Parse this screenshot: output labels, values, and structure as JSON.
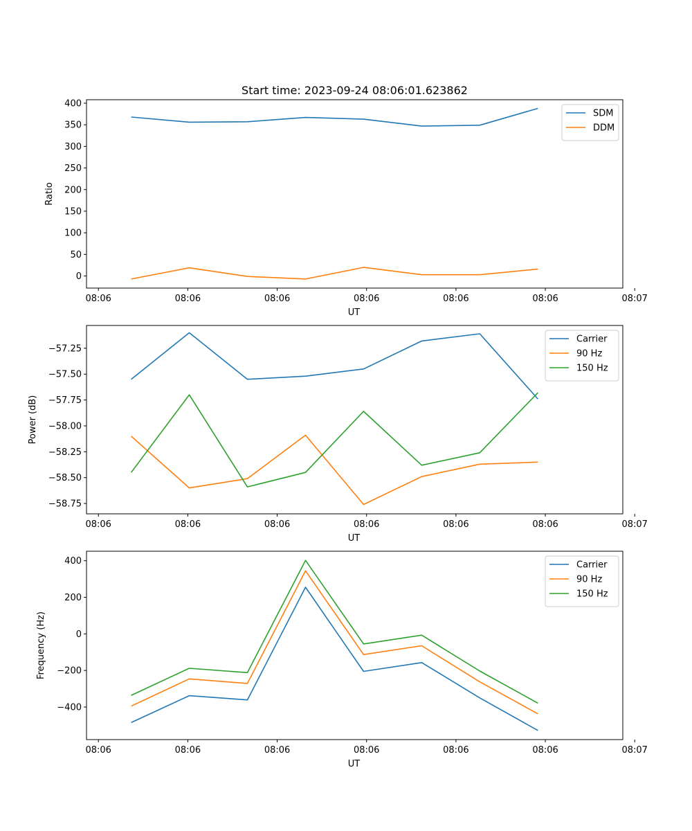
{
  "chart_data": [
    {
      "type": "line",
      "title": "Start time: 2023-09-24 08:06:01.623862",
      "xlabel": "UT",
      "ylabel": "Ratio",
      "x": [
        1.5,
        3.45,
        5.4,
        7.35,
        9.3,
        11.25,
        13.2,
        15.15
      ],
      "xlim": [
        0,
        18
      ],
      "xticks": [
        0.4,
        3.4,
        6.4,
        9.4,
        12.4,
        15.4,
        18.4
      ],
      "xtick_labels": [
        "08:06",
        "08:06",
        "08:06",
        "08:06",
        "08:06",
        "08:06",
        "08:07"
      ],
      "ylim": [
        -28,
        408
      ],
      "yticks": [
        0,
        50,
        100,
        150,
        200,
        250,
        300,
        350,
        400
      ],
      "ytick_labels": [
        "0",
        "50",
        "100",
        "150",
        "200",
        "250",
        "300",
        "350",
        "400"
      ],
      "legend_position": "top-right",
      "series": [
        {
          "name": "SDM",
          "color": "#1f77b4",
          "values": [
            368,
            356,
            357,
            367,
            363,
            347,
            349,
            388
          ]
        },
        {
          "name": "DDM",
          "color": "#ff7f0e",
          "values": [
            -7,
            19,
            -1,
            -7,
            20,
            3,
            3,
            16
          ]
        }
      ]
    },
    {
      "type": "line",
      "title": "",
      "xlabel": "UT",
      "ylabel": "Power (dB)",
      "x": [
        1.5,
        3.45,
        5.4,
        7.35,
        9.3,
        11.25,
        13.2,
        15.15
      ],
      "xlim": [
        0,
        18
      ],
      "xticks": [
        0.4,
        3.4,
        6.4,
        9.4,
        12.4,
        15.4,
        18.4
      ],
      "xtick_labels": [
        "08:06",
        "08:06",
        "08:06",
        "08:06",
        "08:06",
        "08:06",
        "08:07"
      ],
      "ylim": [
        -58.85,
        -57.03
      ],
      "yticks": [
        -58.75,
        -58.5,
        -58.25,
        -58.0,
        -57.75,
        -57.5,
        -57.25
      ],
      "ytick_labels": [
        "−58.75",
        "−58.50",
        "−58.25",
        "−58.00",
        "−57.75",
        "−57.50",
        "−57.25"
      ],
      "legend_position": "top-right",
      "series": [
        {
          "name": "Carrier",
          "color": "#1f77b4",
          "values": [
            -57.55,
            -57.1,
            -57.55,
            -57.52,
            -57.45,
            -57.18,
            -57.11,
            -57.74
          ]
        },
        {
          "name": "90 Hz",
          "color": "#ff7f0e",
          "values": [
            -58.1,
            -58.6,
            -58.51,
            -58.09,
            -58.76,
            -58.49,
            -58.37,
            -58.35
          ]
        },
        {
          "name": "150 Hz",
          "color": "#2ca02c",
          "values": [
            -58.45,
            -57.7,
            -58.59,
            -58.45,
            -57.86,
            -58.38,
            -58.26,
            -57.68
          ]
        }
      ]
    },
    {
      "type": "line",
      "title": "",
      "xlabel": "UT",
      "ylabel": "Frequency (Hz)",
      "x": [
        1.5,
        3.45,
        5.4,
        7.35,
        9.3,
        11.25,
        13.2,
        15.15
      ],
      "xlim": [
        0,
        18
      ],
      "xticks": [
        0.4,
        3.4,
        6.4,
        9.4,
        12.4,
        15.4,
        18.4
      ],
      "xtick_labels": [
        "08:06",
        "08:06",
        "08:06",
        "08:06",
        "08:06",
        "08:06",
        "08:07"
      ],
      "ylim": [
        -578,
        452
      ],
      "yticks": [
        -400,
        -200,
        0,
        200,
        400
      ],
      "ytick_labels": [
        "−400",
        "−200",
        "0",
        "200",
        "400"
      ],
      "legend_position": "top-right",
      "series": [
        {
          "name": "Carrier",
          "color": "#1f77b4",
          "values": [
            -485,
            -338,
            -361,
            255,
            -205,
            -157,
            -350,
            -528
          ]
        },
        {
          "name": "90 Hz",
          "color": "#ff7f0e",
          "values": [
            -395,
            -246,
            -271,
            345,
            -113,
            -65,
            -262,
            -437
          ]
        },
        {
          "name": "150 Hz",
          "color": "#2ca02c",
          "values": [
            -336,
            -188,
            -212,
            402,
            -55,
            -7,
            -203,
            -379
          ]
        }
      ]
    }
  ]
}
